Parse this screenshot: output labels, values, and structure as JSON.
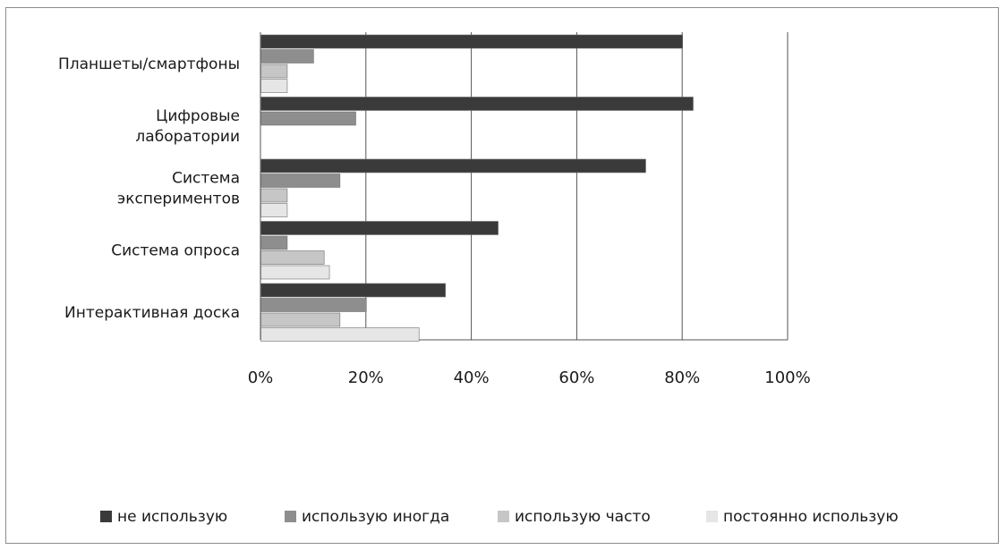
{
  "chart_data": {
    "type": "bar",
    "orientation": "horizontal",
    "categories": [
      [
        "Планшеты/смартфоны"
      ],
      [
        "Цифровые",
        "лаборатории"
      ],
      [
        "Система",
        "экспериментов"
      ],
      [
        "Система опроса"
      ],
      [
        "Интерактивная доска"
      ]
    ],
    "series": [
      {
        "name": "не использую",
        "color": "#3a3a3a",
        "values": [
          80,
          82,
          73,
          45,
          35
        ]
      },
      {
        "name": "использую иногда",
        "color": "#8e8e8e",
        "values": [
          10,
          18,
          15,
          5,
          20
        ]
      },
      {
        "name": "использую часто",
        "color": "#c6c6c6",
        "values": [
          5,
          0,
          5,
          12,
          15
        ]
      },
      {
        "name": "постоянно использую",
        "color": "#e6e6e6",
        "values": [
          5,
          0,
          5,
          13,
          30
        ]
      }
    ],
    "xticks": [
      "0%",
      "20%",
      "40%",
      "60%",
      "80%",
      "100%"
    ],
    "xlim": [
      0,
      100
    ],
    "grid": true,
    "legend_position": "bottom",
    "title": "",
    "xlabel": "",
    "ylabel": ""
  }
}
